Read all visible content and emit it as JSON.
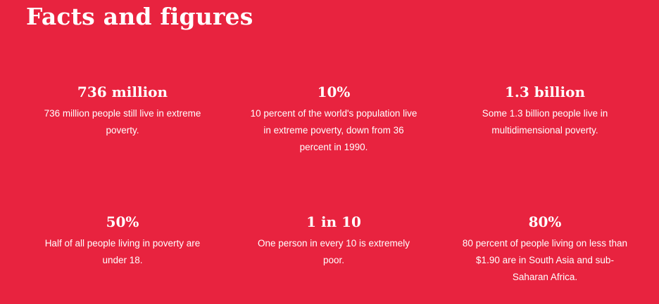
{
  "section": {
    "title": "Facts and figures"
  },
  "facts": [
    {
      "value": "736 million",
      "description": "736 million people still live in extreme poverty."
    },
    {
      "value": "10%",
      "description": "10 percent of the world's population live in extreme poverty, down from 36 percent in 1990."
    },
    {
      "value": "1.3 billion",
      "description": "Some 1.3 billion people live in multidimensional poverty."
    },
    {
      "value": "50%",
      "description": "Half of all people living in poverty are under 18."
    },
    {
      "value": "1 in 10",
      "description": "One person in every 10 is extremely poor."
    },
    {
      "value": "80%",
      "description": "80 percent of people living on less than $1.90 are in South Asia and sub-Saharan Africa."
    }
  ],
  "colors": {
    "background": "#E8233F",
    "text": "#FFFFFF"
  }
}
